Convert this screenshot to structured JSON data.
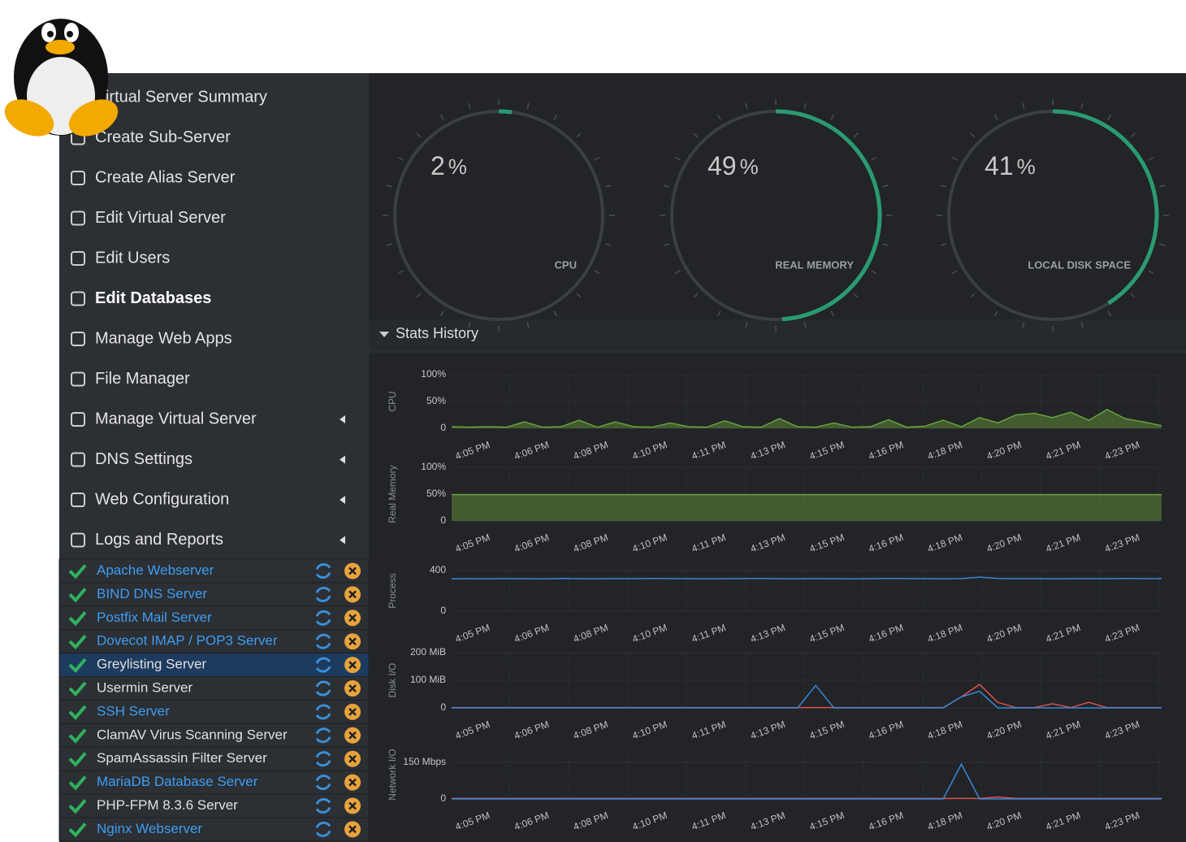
{
  "menu": [
    {
      "label": "Virtual Server Summary"
    },
    {
      "label": "Create Sub-Server"
    },
    {
      "label": "Create Alias Server"
    },
    {
      "label": "Edit Virtual Server"
    },
    {
      "label": "Edit Users"
    },
    {
      "label": "Edit Databases",
      "active": true
    },
    {
      "label": "Manage Web Apps"
    },
    {
      "label": "File Manager"
    },
    {
      "label": "Manage Virtual Server",
      "submenu": true
    },
    {
      "label": "DNS Settings",
      "submenu": true
    },
    {
      "label": "Web Configuration",
      "submenu": true
    },
    {
      "label": "Logs and Reports",
      "submenu": true
    }
  ],
  "services": [
    {
      "name": "Apache Webserver",
      "link": true
    },
    {
      "name": "BIND DNS Server",
      "link": true
    },
    {
      "name": "Postfix Mail Server",
      "link": true
    },
    {
      "name": "Dovecot IMAP / POP3 Server",
      "link": true
    },
    {
      "name": "Greylisting Server",
      "link": false,
      "selected": true
    },
    {
      "name": "Usermin Server",
      "link": false
    },
    {
      "name": "SSH Server",
      "link": true
    },
    {
      "name": "ClamAV Virus Scanning Server",
      "link": false
    },
    {
      "name": "SpamAssassin Filter Server",
      "link": false
    },
    {
      "name": "MariaDB Database Server",
      "link": true
    },
    {
      "name": "PHP-FPM 8.3.6 Server",
      "link": false
    },
    {
      "name": "Nginx Webserver",
      "link": true
    }
  ],
  "gauges": [
    {
      "value": 2,
      "unit": "%",
      "label": "CPU"
    },
    {
      "value": 49,
      "unit": "%",
      "label": "REAL MEMORY"
    },
    {
      "value": 41,
      "unit": "%",
      "label": "LOCAL DISK SPACE"
    }
  ],
  "stats_history": {
    "title": "Stats History",
    "x_labels": [
      "4:05 PM",
      "4:06 PM",
      "4:08 PM",
      "4:10 PM",
      "4:11 PM",
      "4:13 PM",
      "4:15 PM",
      "4:16 PM",
      "4:18 PM",
      "4:20 PM",
      "4:21 PM",
      "4:23 PM"
    ],
    "charts": [
      {
        "type": "area",
        "ylabel": "CPU",
        "ylim": [
          0,
          100
        ],
        "yticks": [
          0,
          {
            "value": 50,
            "label": "50%"
          },
          {
            "value": 100,
            "label": "100%"
          }
        ],
        "series": [
          {
            "color": "#6aa03c",
            "values": [
              3,
              2,
              3,
              2,
              12,
              2,
              3,
              15,
              2,
              12,
              3,
              2,
              10,
              3,
              2,
              14,
              3,
              2,
              18,
              3,
              2,
              10,
              2,
              3,
              16,
              2,
              4,
              15,
              3,
              20,
              10,
              25,
              28,
              20,
              30,
              15,
              35,
              18,
              12,
              5
            ]
          }
        ]
      },
      {
        "type": "area",
        "ylabel": "Real Memory",
        "ylim": [
          0,
          100
        ],
        "yticks": [
          0,
          {
            "value": 50,
            "label": "50%"
          },
          {
            "value": 100,
            "label": "100%"
          }
        ],
        "series": [
          {
            "color": "#6aa03c",
            "values": [
              49,
              49,
              49,
              49,
              49,
              49,
              49,
              49,
              49,
              49,
              49,
              49,
              49,
              49,
              49,
              49,
              49,
              49,
              49,
              49
            ]
          }
        ]
      },
      {
        "type": "line",
        "ylabel": "Process",
        "ylim": [
          0,
          400
        ],
        "yticks": [
          0,
          400
        ],
        "series": [
          {
            "color": "#3a86d8",
            "values": [
              318,
              320,
              319,
              321,
              320,
              318,
              322,
              320,
              319,
              321,
              320,
              322,
              321,
              320,
              319,
              320,
              321,
              322,
              320,
              319,
              321,
              320,
              318,
              320,
              322,
              321,
              320,
              319,
              321,
              335,
              322,
              320,
              321,
              319,
              320,
              321,
              320,
              322,
              321,
              320
            ]
          }
        ]
      },
      {
        "type": "line",
        "ylabel": "Disk I/O",
        "ylim": [
          0,
          200
        ],
        "yticks": [
          0,
          {
            "value": 100,
            "label": "100 MiB"
          },
          {
            "value": 200,
            "label": "200 MiB"
          }
        ],
        "series": [
          {
            "color": "#d9534f",
            "values": [
              1,
              1,
              1,
              1,
              1,
              1,
              1,
              1,
              1,
              1,
              1,
              1,
              1,
              1,
              1,
              1,
              1,
              1,
              1,
              1,
              1,
              1,
              1,
              1,
              1,
              1,
              1,
              1,
              40,
              85,
              20,
              1,
              1,
              15,
              1,
              20,
              1,
              1,
              1,
              1
            ]
          },
          {
            "color": "#3a86d8",
            "values": [
              0,
              0,
              0,
              0,
              0,
              0,
              0,
              0,
              0,
              0,
              0,
              0,
              0,
              0,
              0,
              0,
              0,
              0,
              0,
              0,
              81,
              0,
              0,
              0,
              0,
              0,
              0,
              0,
              40,
              60,
              0,
              0,
              0,
              0,
              0,
              0,
              0,
              0,
              0,
              0
            ]
          }
        ]
      },
      {
        "type": "line",
        "ylabel": "Network I/O",
        "ylim": [
          0,
          200
        ],
        "yticks": [
          0,
          {
            "value": 150,
            "label": "150 Mbps"
          }
        ],
        "series": [
          {
            "color": "#d9534f",
            "values": [
              2,
              2,
              2,
              2,
              2,
              2,
              2,
              2,
              2,
              2,
              2,
              2,
              2,
              2,
              2,
              2,
              2,
              2,
              2,
              2,
              2,
              2,
              2,
              2,
              2,
              2,
              2,
              2,
              2,
              2,
              8,
              2,
              2,
              2,
              2,
              2,
              2,
              2,
              2,
              2
            ]
          },
          {
            "color": "#3a86d8",
            "values": [
              0,
              0,
              0,
              0,
              0,
              0,
              0,
              0,
              0,
              0,
              0,
              0,
              0,
              0,
              0,
              0,
              0,
              0,
              0,
              0,
              0,
              0,
              0,
              0,
              0,
              0,
              0,
              0,
              143,
              0,
              0,
              0,
              0,
              0,
              0,
              0,
              0,
              0,
              0,
              0
            ]
          }
        ]
      }
    ]
  }
}
